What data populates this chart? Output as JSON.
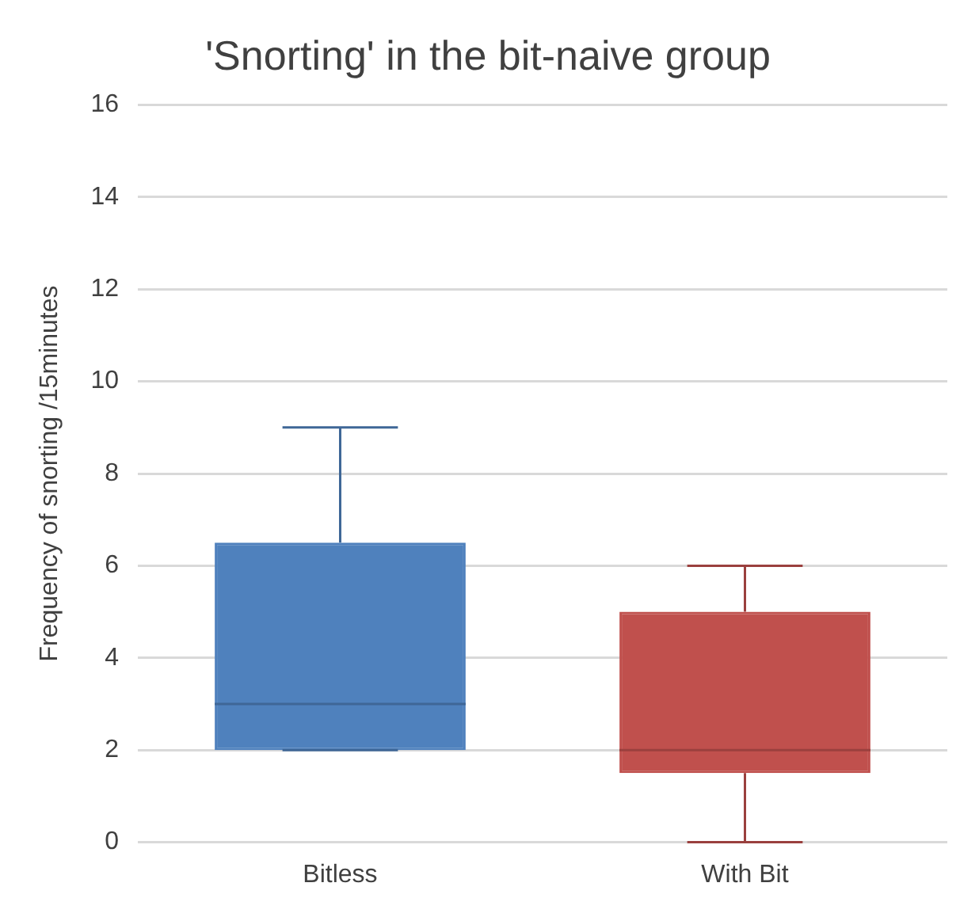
{
  "chart_data": {
    "type": "box",
    "title": "'Snorting' in the bit-naive group",
    "ylabel": "Frequency of snorting /15minutes",
    "categories": [
      "Bitless",
      "With Bit"
    ],
    "boxes": [
      {
        "low": 2,
        "q1": 2,
        "median": 3,
        "q3": 6.5,
        "high": 9
      },
      {
        "low": 0,
        "q1": 1.5,
        "median": 2,
        "q3": 5,
        "high": 6
      }
    ],
    "colors": [
      "#4f81bd",
      "#c0504d"
    ],
    "ylim": [
      0,
      16
    ],
    "yticks": [
      0,
      2,
      4,
      6,
      8,
      10,
      12,
      14,
      16
    ],
    "grid": "y",
    "legend": false
  }
}
